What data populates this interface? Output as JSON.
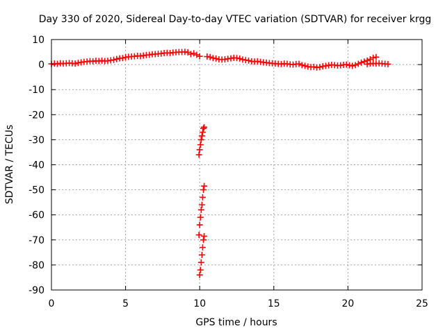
{
  "chart_data": {
    "type": "scatter",
    "title": "Day 330 of 2020, Sidereal Day-to-day VTEC variation (SDTVAR) for receiver krgg",
    "xlabel": "GPS time / hours",
    "ylabel": "SDTVAR / TECUs",
    "xlim": [
      0,
      25
    ],
    "ylim": [
      -90,
      10
    ],
    "xticks": [
      0,
      5,
      10,
      15,
      20,
      25
    ],
    "yticks": [
      10,
      0,
      -10,
      -20,
      -30,
      -40,
      -50,
      -60,
      -70,
      -80,
      -90
    ],
    "grid": true,
    "marker": "+",
    "color": "#ff0000",
    "series": [
      {
        "name": "SDTVAR",
        "points": [
          [
            0.0,
            0.3
          ],
          [
            0.2,
            0.4
          ],
          [
            0.4,
            0.3
          ],
          [
            0.6,
            0.5
          ],
          [
            0.8,
            0.4
          ],
          [
            1.0,
            0.5
          ],
          [
            1.2,
            0.6
          ],
          [
            1.4,
            0.5
          ],
          [
            1.6,
            0.4
          ],
          [
            1.8,
            0.7
          ],
          [
            2.0,
            0.9
          ],
          [
            2.2,
            1.1
          ],
          [
            2.4,
            1.2
          ],
          [
            2.6,
            1.4
          ],
          [
            2.8,
            1.3
          ],
          [
            3.0,
            1.5
          ],
          [
            3.2,
            1.4
          ],
          [
            3.4,
            1.6
          ],
          [
            3.6,
            1.4
          ],
          [
            3.8,
            1.5
          ],
          [
            4.0,
            1.7
          ],
          [
            4.2,
            1.9
          ],
          [
            4.4,
            2.2
          ],
          [
            4.6,
            2.5
          ],
          [
            4.8,
            2.6
          ],
          [
            5.0,
            2.9
          ],
          [
            5.2,
            3.1
          ],
          [
            5.4,
            3.2
          ],
          [
            5.6,
            3.3
          ],
          [
            5.8,
            3.5
          ],
          [
            6.0,
            3.4
          ],
          [
            6.2,
            3.6
          ],
          [
            6.4,
            3.8
          ],
          [
            6.6,
            3.9
          ],
          [
            6.8,
            4.1
          ],
          [
            7.0,
            4.2
          ],
          [
            7.2,
            4.3
          ],
          [
            7.4,
            4.4
          ],
          [
            7.6,
            4.6
          ],
          [
            7.8,
            4.7
          ],
          [
            8.0,
            4.6
          ],
          [
            8.2,
            4.8
          ],
          [
            8.4,
            4.9
          ],
          [
            8.6,
            5.0
          ],
          [
            8.8,
            5.0
          ],
          [
            9.0,
            5.1
          ],
          [
            9.2,
            4.9
          ],
          [
            9.4,
            4.2
          ],
          [
            9.6,
            4.5
          ],
          [
            9.8,
            3.9
          ],
          [
            10.0,
            3.3
          ],
          [
            9.95,
            -36.0
          ],
          [
            10.0,
            -34.0
          ],
          [
            10.05,
            -32.0
          ],
          [
            10.1,
            -30.0
          ],
          [
            10.15,
            -28.5
          ],
          [
            10.2,
            -27.0
          ],
          [
            10.25,
            -25.5
          ],
          [
            10.3,
            -25.0
          ],
          [
            9.95,
            -68.0
          ],
          [
            10.0,
            -64.0
          ],
          [
            10.05,
            -61.0
          ],
          [
            10.1,
            -58.0
          ],
          [
            10.15,
            -56.0
          ],
          [
            10.2,
            -53.0
          ],
          [
            10.25,
            -50.0
          ],
          [
            10.3,
            -48.5
          ],
          [
            10.0,
            -84.0
          ],
          [
            10.05,
            -82.0
          ],
          [
            10.1,
            -79.0
          ],
          [
            10.15,
            -76.0
          ],
          [
            10.2,
            -73.0
          ],
          [
            10.25,
            -70.0
          ],
          [
            10.3,
            -68.5
          ],
          [
            10.5,
            3.2
          ],
          [
            10.7,
            3.0
          ],
          [
            10.9,
            2.6
          ],
          [
            11.1,
            2.4
          ],
          [
            11.3,
            2.1
          ],
          [
            11.5,
            2.0
          ],
          [
            11.7,
            2.1
          ],
          [
            11.9,
            2.3
          ],
          [
            12.1,
            2.5
          ],
          [
            12.3,
            2.7
          ],
          [
            12.5,
            2.6
          ],
          [
            12.7,
            2.4
          ],
          [
            12.9,
            2.0
          ],
          [
            13.1,
            1.8
          ],
          [
            13.3,
            1.6
          ],
          [
            13.5,
            1.3
          ],
          [
            13.7,
            1.2
          ],
          [
            13.9,
            1.3
          ],
          [
            14.1,
            1.1
          ],
          [
            14.3,
            0.9
          ],
          [
            14.5,
            0.8
          ],
          [
            14.7,
            0.6
          ],
          [
            14.9,
            0.5
          ],
          [
            15.1,
            0.4
          ],
          [
            15.3,
            0.3
          ],
          [
            15.5,
            0.2
          ],
          [
            15.7,
            0.4
          ],
          [
            15.9,
            0.3
          ],
          [
            16.1,
            0.1
          ],
          [
            16.3,
            0.0
          ],
          [
            16.5,
            0.2
          ],
          [
            16.7,
            0.3
          ],
          [
            16.9,
            -0.2
          ],
          [
            17.1,
            -0.5
          ],
          [
            17.3,
            -0.8
          ],
          [
            17.5,
            -1.0
          ],
          [
            17.7,
            -0.9
          ],
          [
            17.9,
            -1.2
          ],
          [
            18.1,
            -1.0
          ],
          [
            18.3,
            -0.7
          ],
          [
            18.5,
            -0.5
          ],
          [
            18.7,
            -0.3
          ],
          [
            18.9,
            -0.1
          ],
          [
            19.1,
            -0.2
          ],
          [
            19.3,
            -0.4
          ],
          [
            19.5,
            -0.3
          ],
          [
            19.7,
            -0.1
          ],
          [
            19.9,
            0.0
          ],
          [
            20.1,
            -0.3
          ],
          [
            20.3,
            -0.5
          ],
          [
            20.5,
            -0.2
          ],
          [
            20.7,
            0.3
          ],
          [
            20.9,
            0.8
          ],
          [
            21.1,
            1.2
          ],
          [
            21.3,
            1.6
          ],
          [
            21.5,
            2.1
          ],
          [
            21.7,
            2.7
          ],
          [
            21.9,
            3.0
          ],
          [
            21.3,
            0.2
          ],
          [
            21.5,
            0.4
          ],
          [
            21.7,
            0.5
          ],
          [
            21.9,
            0.4
          ],
          [
            22.1,
            0.5
          ],
          [
            22.3,
            0.4
          ],
          [
            22.5,
            0.3
          ],
          [
            22.7,
            0.2
          ]
        ]
      }
    ]
  }
}
